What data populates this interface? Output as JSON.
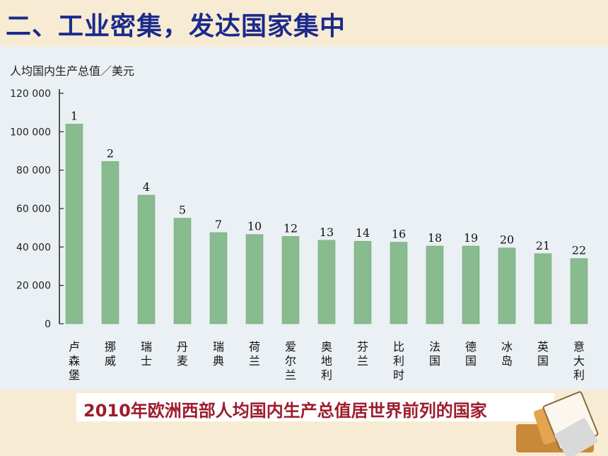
{
  "slide": {
    "title": "二、工业密集，发达国家集中",
    "caption": "2010年欧洲西部人均国内生产总值居世界前列的国家"
  },
  "colors": {
    "bar": "#88bb8e",
    "title": "#1c2a8c",
    "caption": "#9e1c2c"
  },
  "chart_data": {
    "type": "bar",
    "ylabel": "人均国内生产总值／美元",
    "ylim": [
      0,
      120000
    ],
    "yticks": [
      "0",
      "20 000",
      "40 000",
      "60 000",
      "80 000",
      "100 000",
      "120 000"
    ],
    "categories": [
      "卢森堡",
      "挪威",
      "瑞士",
      "丹麦",
      "瑞典",
      "荷兰",
      "爱尔兰",
      "奥地利",
      "芬兰",
      "比利时",
      "法国",
      "德国",
      "冰岛",
      "英国",
      "意大利"
    ],
    "values": [
      104000,
      84500,
      67000,
      55000,
      47500,
      46500,
      45500,
      43500,
      43000,
      42500,
      40500,
      40500,
      39500,
      36500,
      34000
    ],
    "rank_labels": [
      "1",
      "2",
      "4",
      "5",
      "7",
      "10",
      "12",
      "13",
      "14",
      "16",
      "18",
      "19",
      "20",
      "21",
      "22"
    ]
  }
}
